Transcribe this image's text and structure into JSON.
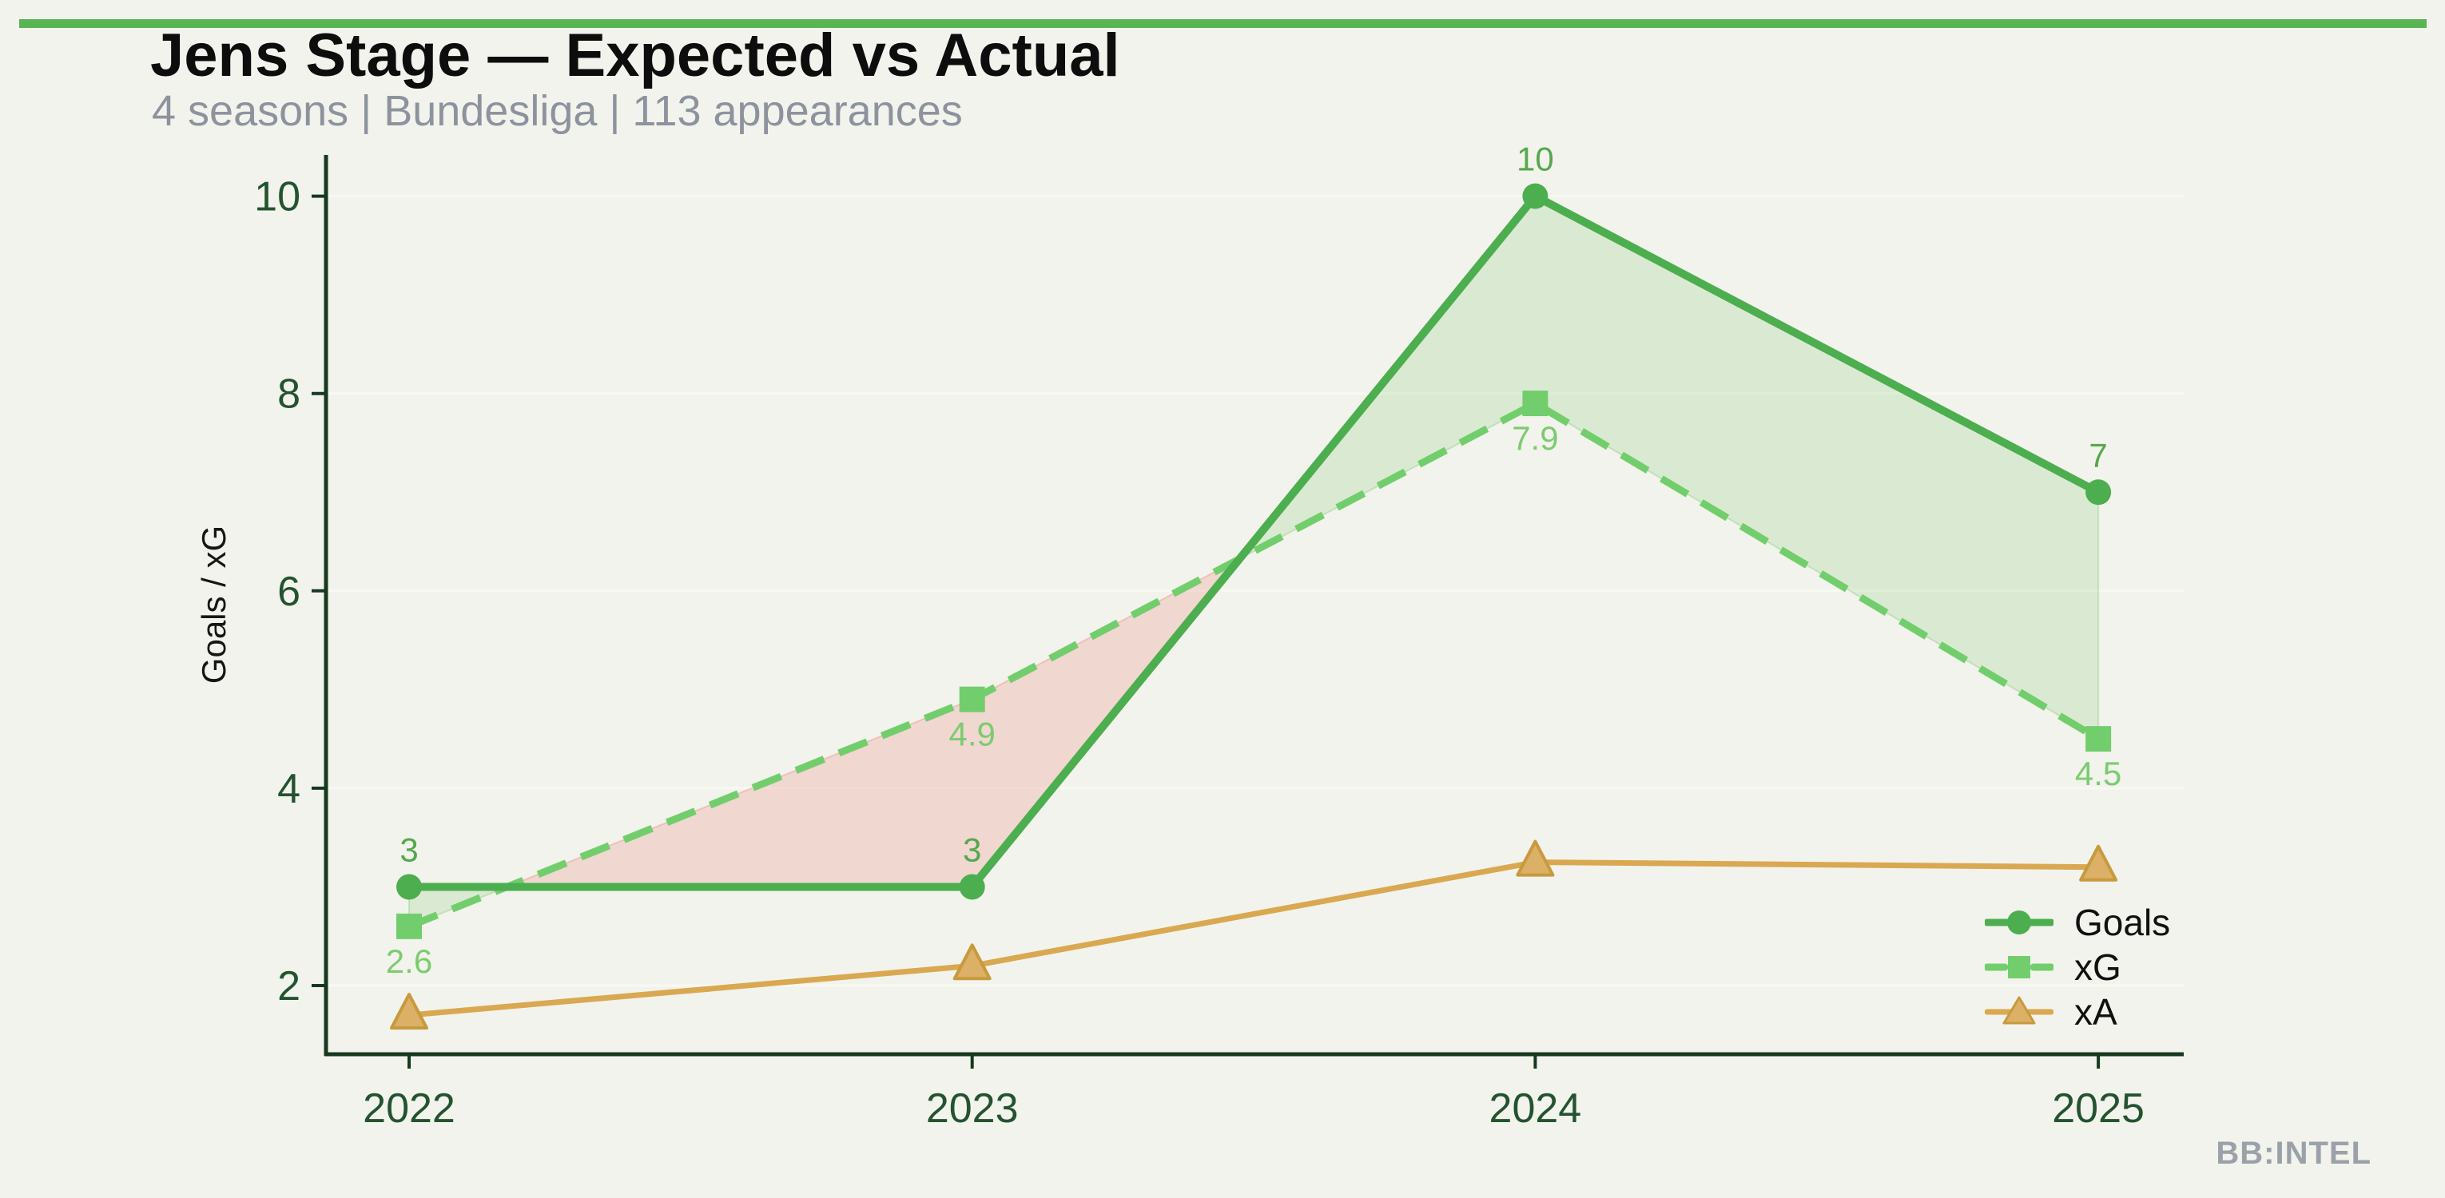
{
  "page": {
    "background_color": "#f2f3ec",
    "accent_bar_color": "#59b553",
    "watermark": "BB:INTEL"
  },
  "header": {
    "title": "Jens Stage — Expected vs Actual",
    "subtitle": "4 seasons | Bundesliga | 113 appearances"
  },
  "chart_data": {
    "type": "line",
    "title": "Jens Stage — Expected vs Actual",
    "subtitle": "4 seasons | Bundesliga | 113 appearances",
    "categories": [
      "2022",
      "2023",
      "2024",
      "2025"
    ],
    "ylabel": "Goals / xG",
    "y_ticks": [
      2,
      4,
      6,
      8,
      10
    ],
    "ylim": [
      1.3,
      10.4
    ],
    "grid": "horizontal",
    "legend_position": "lower-right",
    "axis_color": "#17391f",
    "tick_label_color": "#235330",
    "grid_color": "#f8f9f1",
    "series": [
      {
        "name": "Goals",
        "values": [
          3,
          3,
          10,
          7
        ],
        "point_labels": [
          "3",
          "3",
          "10",
          "7"
        ],
        "color": "#4cae4e",
        "label_color": "#55a84d",
        "marker": "circle",
        "line_style": "solid"
      },
      {
        "name": "xG",
        "values": [
          2.6,
          4.9,
          7.9,
          4.5
        ],
        "point_labels": [
          "2.6",
          "4.9",
          "7.9",
          "4.5"
        ],
        "color": "#72ce6c",
        "label_color": "#7ccb70",
        "marker": "square",
        "line_style": "dashed"
      },
      {
        "name": "xA",
        "values": [
          1.7,
          2.2,
          3.25,
          3.2
        ],
        "point_labels": [
          "",
          "",
          "",
          ""
        ],
        "color": "#d9a851",
        "label_color": "#d9a851",
        "marker": "triangle",
        "marker_fill": "#dcb066",
        "marker_stroke": "#c89a3e",
        "line_style": "solid"
      }
    ],
    "fill_between": {
      "upper": "Goals",
      "lower": "xG",
      "positive_color": "rgba(109,195,96,0.18)",
      "positive_edge": "rgba(109,195,96,0.30)",
      "negative_color": "rgba(232,120,110,0.22)",
      "negative_edge": "rgba(232,120,110,0.32)"
    }
  }
}
